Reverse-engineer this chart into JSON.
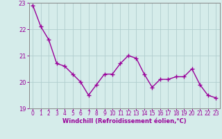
{
  "x": [
    0,
    1,
    2,
    3,
    4,
    5,
    6,
    7,
    8,
    9,
    10,
    11,
    12,
    13,
    14,
    15,
    16,
    17,
    18,
    19,
    20,
    21,
    22,
    23
  ],
  "y": [
    22.9,
    22.1,
    21.6,
    20.7,
    20.6,
    20.3,
    20.0,
    19.5,
    19.9,
    20.3,
    20.3,
    20.7,
    21.0,
    20.9,
    20.3,
    19.8,
    20.1,
    20.1,
    20.2,
    20.2,
    20.5,
    19.9,
    19.5,
    19.4
  ],
  "line_color": "#990099",
  "marker": "+",
  "bg_color": "#d5ecea",
  "grid_color": "#b0cece",
  "xlabel": "Windchill (Refroidissement éolien,°C)",
  "xlabel_color": "#990099",
  "tick_color": "#990099",
  "spine_color": "#888888",
  "ylim": [
    19,
    23
  ],
  "xlim": [
    -0.5,
    23.5
  ],
  "yticks": [
    19,
    20,
    21,
    22,
    23
  ],
  "xticks": [
    0,
    1,
    2,
    3,
    4,
    5,
    6,
    7,
    8,
    9,
    10,
    11,
    12,
    13,
    14,
    15,
    16,
    17,
    18,
    19,
    20,
    21,
    22,
    23
  ],
  "tick_fontsize": 5.5,
  "xlabel_fontsize": 6.0,
  "marker_size": 4,
  "linewidth": 1.0
}
